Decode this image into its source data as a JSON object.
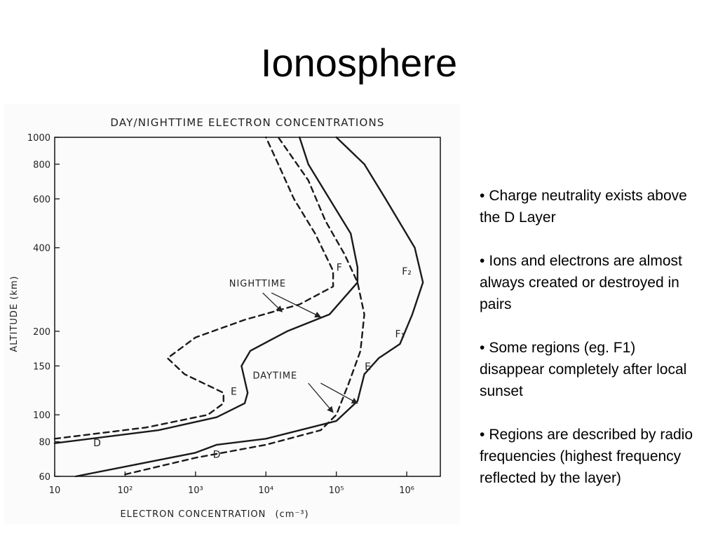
{
  "slide": {
    "title": "Ionosphere"
  },
  "bullets": [
    {
      "text": "Charge neutrality exists above the D Layer"
    },
    {
      "text": "Ions and electrons are almost always created or destroyed in pairs"
    },
    {
      "text": "Some regions (eg. F1) disappear completely after local sunset"
    },
    {
      "text": "Regions are described by radio frequencies (highest frequency reflected by the layer)"
    }
  ],
  "chart_data": {
    "type": "line",
    "title": "DAY/NIGHTTIME ELECTRON CONCENTRATIONS",
    "xlabel": "ELECTRON CONCENTRATION",
    "xlabel_unit": "(cm⁻³)",
    "ylabel": "ALTITUDE (km)",
    "x_scale": "log",
    "y_scale": "log",
    "xlim": [
      10,
      3000000
    ],
    "ylim": [
      60,
      1000
    ],
    "x_ticks": [
      {
        "value": 10,
        "label": "10"
      },
      {
        "value": 100,
        "label": "10²"
      },
      {
        "value": 1000,
        "label": "10³"
      },
      {
        "value": 10000,
        "label": "10⁴"
      },
      {
        "value": 100000,
        "label": "10⁵"
      },
      {
        "value": 1000000,
        "label": "10⁶"
      }
    ],
    "y_ticks": [
      {
        "value": 60,
        "label": "60"
      },
      {
        "value": 80,
        "label": "80"
      },
      {
        "value": 100,
        "label": "100"
      },
      {
        "value": 150,
        "label": "150"
      },
      {
        "value": 200,
        "label": "200"
      },
      {
        "value": 400,
        "label": "400"
      },
      {
        "value": 600,
        "label": "600"
      },
      {
        "value": 800,
        "label": "800"
      },
      {
        "value": 1000,
        "label": "1000"
      }
    ],
    "series": [
      {
        "style": "solid",
        "points": [
          [
            10,
            79
          ],
          [
            300,
            88
          ],
          [
            2000,
            98
          ],
          [
            5000,
            110
          ],
          [
            5500,
            120
          ],
          [
            4500,
            150
          ],
          [
            6000,
            170
          ],
          [
            20000,
            200
          ],
          [
            80000,
            230
          ],
          [
            200000,
            300
          ],
          [
            200000,
            340
          ],
          [
            160000,
            450
          ],
          [
            80000,
            600
          ],
          [
            40000,
            800
          ],
          [
            30000,
            1000
          ]
        ]
      },
      {
        "style": "dashed",
        "points": [
          [
            10,
            82
          ],
          [
            200,
            90
          ],
          [
            1500,
            100
          ],
          [
            2500,
            110
          ],
          [
            2500,
            120
          ],
          [
            700,
            140
          ],
          [
            400,
            160
          ],
          [
            1000,
            190
          ],
          [
            5000,
            220
          ],
          [
            30000,
            250
          ],
          [
            90000,
            290
          ],
          [
            90000,
            330
          ],
          [
            50000,
            450
          ],
          [
            25000,
            600
          ],
          [
            15000,
            800
          ],
          [
            10000,
            1000
          ]
        ]
      },
      {
        "style": "solid",
        "points": [
          [
            20,
            60
          ],
          [
            100,
            65
          ],
          [
            1000,
            73
          ],
          [
            2000,
            78
          ],
          [
            10000,
            82
          ],
          [
            100000,
            95
          ],
          [
            200000,
            112
          ],
          [
            250000,
            140
          ],
          [
            400000,
            160
          ],
          [
            800000,
            180
          ],
          [
            1200000,
            230
          ],
          [
            1700000,
            300
          ],
          [
            1300000,
            400
          ],
          [
            500000,
            600
          ],
          [
            250000,
            800
          ],
          [
            100000,
            1000
          ]
        ]
      },
      {
        "style": "dashed",
        "points": [
          [
            100,
            61
          ],
          [
            1000,
            70
          ],
          [
            10000,
            78
          ],
          [
            60000,
            88
          ],
          [
            100000,
            100
          ],
          [
            150000,
            130
          ],
          [
            220000,
            170
          ],
          [
            250000,
            230
          ],
          [
            200000,
            300
          ],
          [
            130000,
            380
          ],
          [
            70000,
            500
          ],
          [
            40000,
            700
          ],
          [
            15000,
            1000
          ]
        ]
      }
    ],
    "annotations": [
      {
        "text": "NIGHTTIME",
        "x": 3000,
        "y": 290
      },
      {
        "text": "DAYTIME",
        "x": 6500,
        "y": 135
      },
      {
        "text": "F",
        "x": 110000,
        "y": 330
      },
      {
        "text": "F₂",
        "x": 1000000,
        "y": 320
      },
      {
        "text": "F₁",
        "x": 800000,
        "y": 190
      },
      {
        "text": "E",
        "x": 280000,
        "y": 145
      },
      {
        "text": "E",
        "x": 3500,
        "y": 118
      },
      {
        "text": "D",
        "x": 40,
        "y": 77
      },
      {
        "text": "D",
        "x": 2000,
        "y": 70
      }
    ]
  }
}
